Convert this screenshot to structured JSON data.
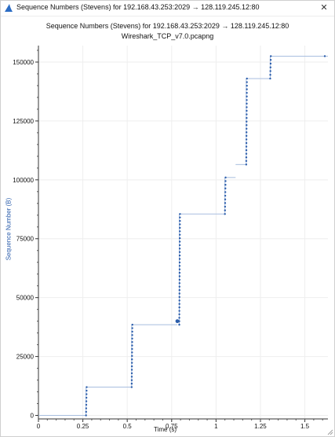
{
  "window": {
    "title": "Sequence Numbers (Stevens) for 192.168.43.253:2029 → 128.119.245.12:80",
    "close_glyph": "✕",
    "icon": "shark-fin-icon"
  },
  "chart_data": {
    "type": "scatter",
    "title": "Sequence Numbers (Stevens) for 192.168.43.253:2029 → 128.119.245.12:80",
    "subtitle": "Wireshark_TCP_v7.0.pcapng",
    "xlabel": "Time (s)",
    "ylabel": "Sequence Number (B)",
    "xlim": [
      0,
      1.63
    ],
    "ylim": [
      -1500,
      157000
    ],
    "x_ticks": [
      0,
      0.25,
      0.5,
      0.75,
      1,
      1.25,
      1.5
    ],
    "x_tick_labels": [
      "0",
      "0.25",
      "0.5",
      "0.75",
      "1",
      "1.25",
      "1.5"
    ],
    "y_ticks": [
      0,
      25000,
      50000,
      75000,
      100000,
      125000,
      150000
    ],
    "y_tick_labels": [
      "0",
      "25000",
      "50000",
      "75000",
      "100000",
      "125000",
      "150000"
    ],
    "grid": true,
    "color": "#2b5dab",
    "line_color": "#a8bedf",
    "bursts": [
      {
        "t": 0.268,
        "y_start": 0,
        "y_end": 12000,
        "count": 9
      },
      {
        "t": 0.525,
        "y_start": 12000,
        "y_end": 38500,
        "count": 19
      },
      {
        "t": 0.793,
        "y_start": 38500,
        "y_end": 85500,
        "count": 33
      },
      {
        "t": 1.05,
        "y_start": 85500,
        "y_end": 101000,
        "count": 11
      },
      {
        "t": 1.17,
        "y_start": 106500,
        "y_end": 143000,
        "count": 25
      },
      {
        "t": 1.305,
        "y_start": 143000,
        "y_end": 152500,
        "count": 7
      }
    ],
    "plateaus": [
      {
        "t_start": 0.0,
        "t_end": 0.268,
        "y": 0
      },
      {
        "t_start": 0.268,
        "t_end": 0.525,
        "y": 12000
      },
      {
        "t_start": 0.525,
        "t_end": 0.782,
        "y": 38500
      },
      {
        "t_start": 0.793,
        "t_end": 1.05,
        "y": 85500
      },
      {
        "t_start": 1.05,
        "t_end": 1.11,
        "y": 101000
      },
      {
        "t_start": 1.11,
        "t_end": 1.17,
        "y": 106500
      },
      {
        "t_start": 1.17,
        "t_end": 1.305,
        "y": 143000
      },
      {
        "t_start": 1.305,
        "t_end": 1.63,
        "y": 152500
      }
    ],
    "highlight": {
      "t": 0.782,
      "y": 40000
    }
  }
}
